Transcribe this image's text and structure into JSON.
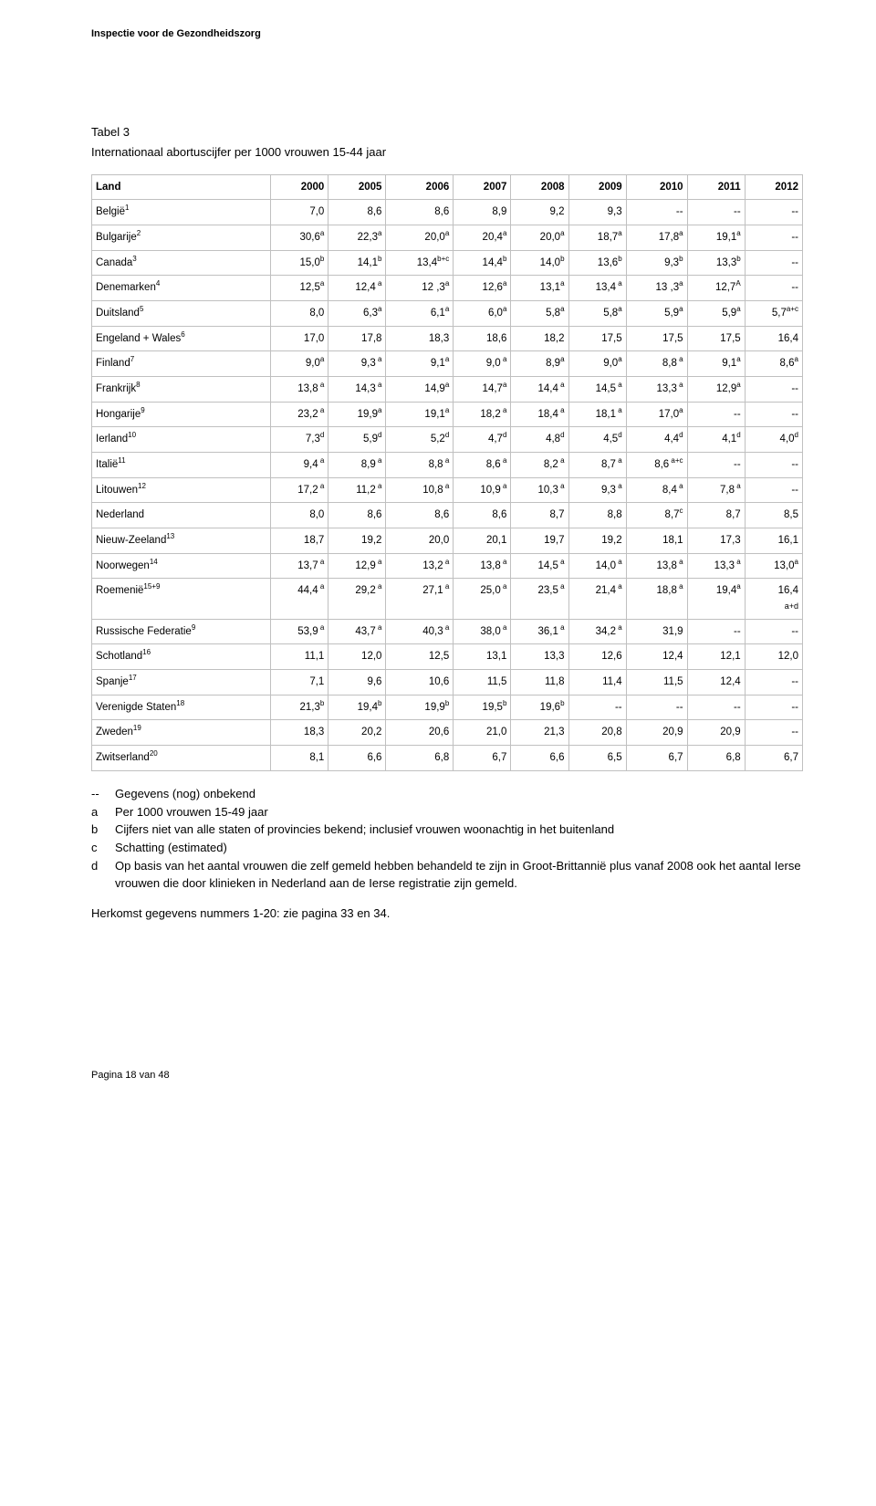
{
  "header": {
    "org": "Inspectie voor de Gezondheidszorg"
  },
  "table": {
    "heading": "Tabel 3",
    "title": "Internationaal abortuscijfer per 1000 vrouwen 15-44 jaar",
    "col_country": "Land",
    "years": [
      "2000",
      "2005",
      "2006",
      "2007",
      "2008",
      "2009",
      "2010",
      "2011",
      "2012"
    ],
    "rows": [
      {
        "c": "België",
        "s": "1",
        "v": [
          "7,0",
          "8,6",
          "8,6",
          "8,9",
          "9,2",
          "9,3",
          "--",
          "--",
          "--"
        ],
        "vs": [
          "",
          "",
          "",
          "",
          "",
          "",
          "",
          "",
          ""
        ]
      },
      {
        "c": "Bulgarije",
        "s": "2",
        "v": [
          "30,6",
          "22,3",
          "20,0",
          "20,4",
          "20,0",
          "18,7",
          "17,8",
          "19,1",
          "--"
        ],
        "vs": [
          "a",
          "a",
          "a",
          "a",
          "a",
          "a",
          "a",
          "a",
          ""
        ]
      },
      {
        "c": "Canada",
        "s": "3",
        "v": [
          "15,0",
          "14,1",
          "13,4",
          "14,4",
          "14,0",
          "13,6",
          "9,3",
          "13,3",
          "--"
        ],
        "vs": [
          "b",
          "b",
          "b+c",
          "b",
          "b",
          "b",
          "b",
          "b",
          ""
        ]
      },
      {
        "c": "Denemarken",
        "s": "4",
        "v": [
          "12,5",
          "12,4",
          "12 ,3",
          "12,6",
          "13,1",
          "13,4",
          "13 ,3",
          "12,7",
          "--"
        ],
        "vs": [
          "a",
          " a",
          "a",
          "a",
          "a",
          " a",
          "a",
          "A",
          ""
        ]
      },
      {
        "c": "Duitsland",
        "s": "5",
        "v": [
          "8,0",
          "6,3",
          "6,1",
          "6,0",
          "5,8",
          "5,8",
          "5,9",
          "5,9",
          "5,7"
        ],
        "vs": [
          "",
          "a",
          "a",
          "a",
          "a",
          "a",
          "a",
          "a",
          "a+c"
        ]
      },
      {
        "c": "Engeland + Wales",
        "s": "6",
        "v": [
          "17,0",
          "17,8",
          "18,3",
          "18,6",
          "18,2",
          "17,5",
          "17,5",
          "17,5",
          "16,4"
        ],
        "vs": [
          "",
          "",
          "",
          "",
          "",
          "",
          "",
          "",
          ""
        ]
      },
      {
        "c": "Finland",
        "s": "7",
        "v": [
          "9,0",
          "9,3",
          "9,1",
          "9,0",
          "8,9",
          "9,0",
          "8,8",
          "9,1",
          "8,6"
        ],
        "vs": [
          "a",
          " a",
          "a",
          " a",
          "a",
          "a",
          " a",
          "a",
          "a"
        ]
      },
      {
        "c": "Frankrijk",
        "s": "8",
        "v": [
          "13,8",
          "14,3",
          "14,9",
          "14,7",
          "14,4",
          "14,5",
          "13,3",
          "12,9",
          "--"
        ],
        "vs": [
          " a",
          " a",
          "a",
          "a",
          " a",
          " a",
          " a",
          "a",
          ""
        ]
      },
      {
        "c": "Hongarije",
        "s": "9",
        "v": [
          "23,2",
          "19,9",
          "19,1",
          "18,2",
          "18,4",
          "18,1",
          "17,0",
          "--",
          "--"
        ],
        "vs": [
          " a",
          "a",
          "a",
          " a",
          " a",
          " a",
          "a",
          "",
          ""
        ]
      },
      {
        "c": "Ierland",
        "s": "10",
        "v": [
          "7,3",
          "5,9",
          "5,2",
          "4,7",
          "4,8",
          "4,5",
          "4,4",
          "4,1",
          "4,0"
        ],
        "vs": [
          "d",
          "d",
          "d",
          "d",
          "d",
          "d",
          "d",
          "d",
          "d"
        ]
      },
      {
        "c": "Italië",
        "s": "11",
        "v": [
          "9,4",
          "8,9",
          "8,8",
          "8,6",
          "8,2",
          "8,7",
          "8,6",
          "--",
          "--"
        ],
        "vs": [
          " a",
          " a",
          " a",
          " a",
          " a",
          " a",
          " a+c",
          "",
          ""
        ]
      },
      {
        "c": "Litouwen",
        "s": "12",
        "v": [
          "17,2",
          "11,2",
          "10,8",
          "10,9",
          "10,3",
          "9,3",
          "8,4",
          "7,8",
          "--"
        ],
        "vs": [
          " a",
          " a",
          " a",
          " a",
          " a",
          " a",
          " a",
          " a",
          ""
        ]
      },
      {
        "c": "Nederland",
        "s": "",
        "v": [
          "8,0",
          "8,6",
          "8,6",
          "8,6",
          "8,7",
          "8,8",
          "8,7",
          "8,7",
          "8,5"
        ],
        "vs": [
          "",
          "",
          "",
          "",
          "",
          "",
          "c",
          "",
          ""
        ]
      },
      {
        "c": "Nieuw-Zeeland",
        "s": "13",
        "v": [
          "18,7",
          "19,2",
          "20,0",
          "20,1",
          "19,7",
          "19,2",
          "18,1",
          "17,3",
          "16,1"
        ],
        "vs": [
          "",
          "",
          "",
          "",
          "",
          "",
          "",
          "",
          ""
        ]
      },
      {
        "c": "Noorwegen",
        "s": "14",
        "v": [
          "13,7",
          "12,9",
          "13,2",
          "13,8",
          "14,5",
          "14,0",
          "13,8",
          "13,3",
          "13,0"
        ],
        "vs": [
          " a",
          " a",
          " a",
          " a",
          " a",
          " a",
          " a",
          " a",
          "a"
        ]
      },
      {
        "c": "Roemenië",
        "s": "15+9",
        "v": [
          "44,4",
          "29,2",
          "27,1",
          "25,0",
          "23,5",
          "21,4",
          "18,8",
          "19,4",
          "16,4"
        ],
        "vs": [
          " a",
          " a",
          " a",
          " a",
          " a",
          " a",
          " a",
          "a",
          ""
        ],
        "extra": "a+d"
      },
      {
        "c": "Russische Federatie",
        "s": "9",
        "v": [
          "53,9",
          "43,7",
          "40,3",
          "38,0",
          "36,1",
          "34,2",
          "31,9",
          "--",
          "--"
        ],
        "vs": [
          " a",
          " a",
          " a",
          " a",
          " a",
          " a",
          "",
          "",
          ""
        ]
      },
      {
        "c": "Schotland",
        "s": "16",
        "v": [
          "11,1",
          "12,0",
          "12,5",
          "13,1",
          "13,3",
          "12,6",
          "12,4",
          "12,1",
          "12,0"
        ],
        "vs": [
          "",
          "",
          "",
          "",
          "",
          "",
          "",
          "",
          ""
        ]
      },
      {
        "c": "Spanje",
        "s": "17",
        "v": [
          "7,1",
          "9,6",
          "10,6",
          "11,5",
          "11,8",
          "11,4",
          "11,5",
          "12,4",
          "--"
        ],
        "vs": [
          "",
          "",
          "",
          "",
          "",
          "",
          "",
          "",
          ""
        ]
      },
      {
        "c": "Verenigde Staten",
        "s": "18",
        "v": [
          "21,3",
          "19,4",
          "19,9",
          "19,5",
          "19,6",
          "--",
          "--",
          "--",
          "--"
        ],
        "vs": [
          "b",
          "b",
          "b",
          "b",
          "b",
          "",
          "",
          "",
          ""
        ]
      },
      {
        "c": "Zweden",
        "s": "19",
        "v": [
          "18,3",
          "20,2",
          "20,6",
          "21,0",
          "21,3",
          "20,8",
          "20,9",
          "20,9",
          "--"
        ],
        "vs": [
          "",
          "",
          "",
          "",
          "",
          "",
          "",
          "",
          ""
        ]
      },
      {
        "c": "Zwitserland",
        "s": "20",
        "v": [
          "8,1",
          "6,6",
          "6,8",
          "6,7",
          "6,6",
          "6,5",
          "6,7",
          "6,8",
          "6,7"
        ],
        "vs": [
          "",
          "",
          "",
          "",
          "",
          "",
          "",
          "",
          ""
        ]
      }
    ]
  },
  "notes": [
    {
      "k": "--",
      "t": "Gegevens (nog) onbekend"
    },
    {
      "k": "a",
      "t": "Per 1000 vrouwen 15-49 jaar"
    },
    {
      "k": "b",
      "t": "Cijfers niet van alle staten of provincies bekend; inclusief vrouwen woonachtig in het buitenland"
    },
    {
      "k": "c",
      "t": "Schatting (estimated)"
    },
    {
      "k": "d",
      "t": "Op basis van het aantal vrouwen die zelf gemeld hebben behandeld te zijn in Groot-Brittannië plus vanaf 2008 ook het aantal Ierse vrouwen die door klinieken in Nederland aan de Ierse registratie zijn gemeld."
    }
  ],
  "source": "Herkomst gegevens nummers 1-20: zie pagina 33 en 34.",
  "footer": {
    "page": "Pagina 18 van 48"
  }
}
